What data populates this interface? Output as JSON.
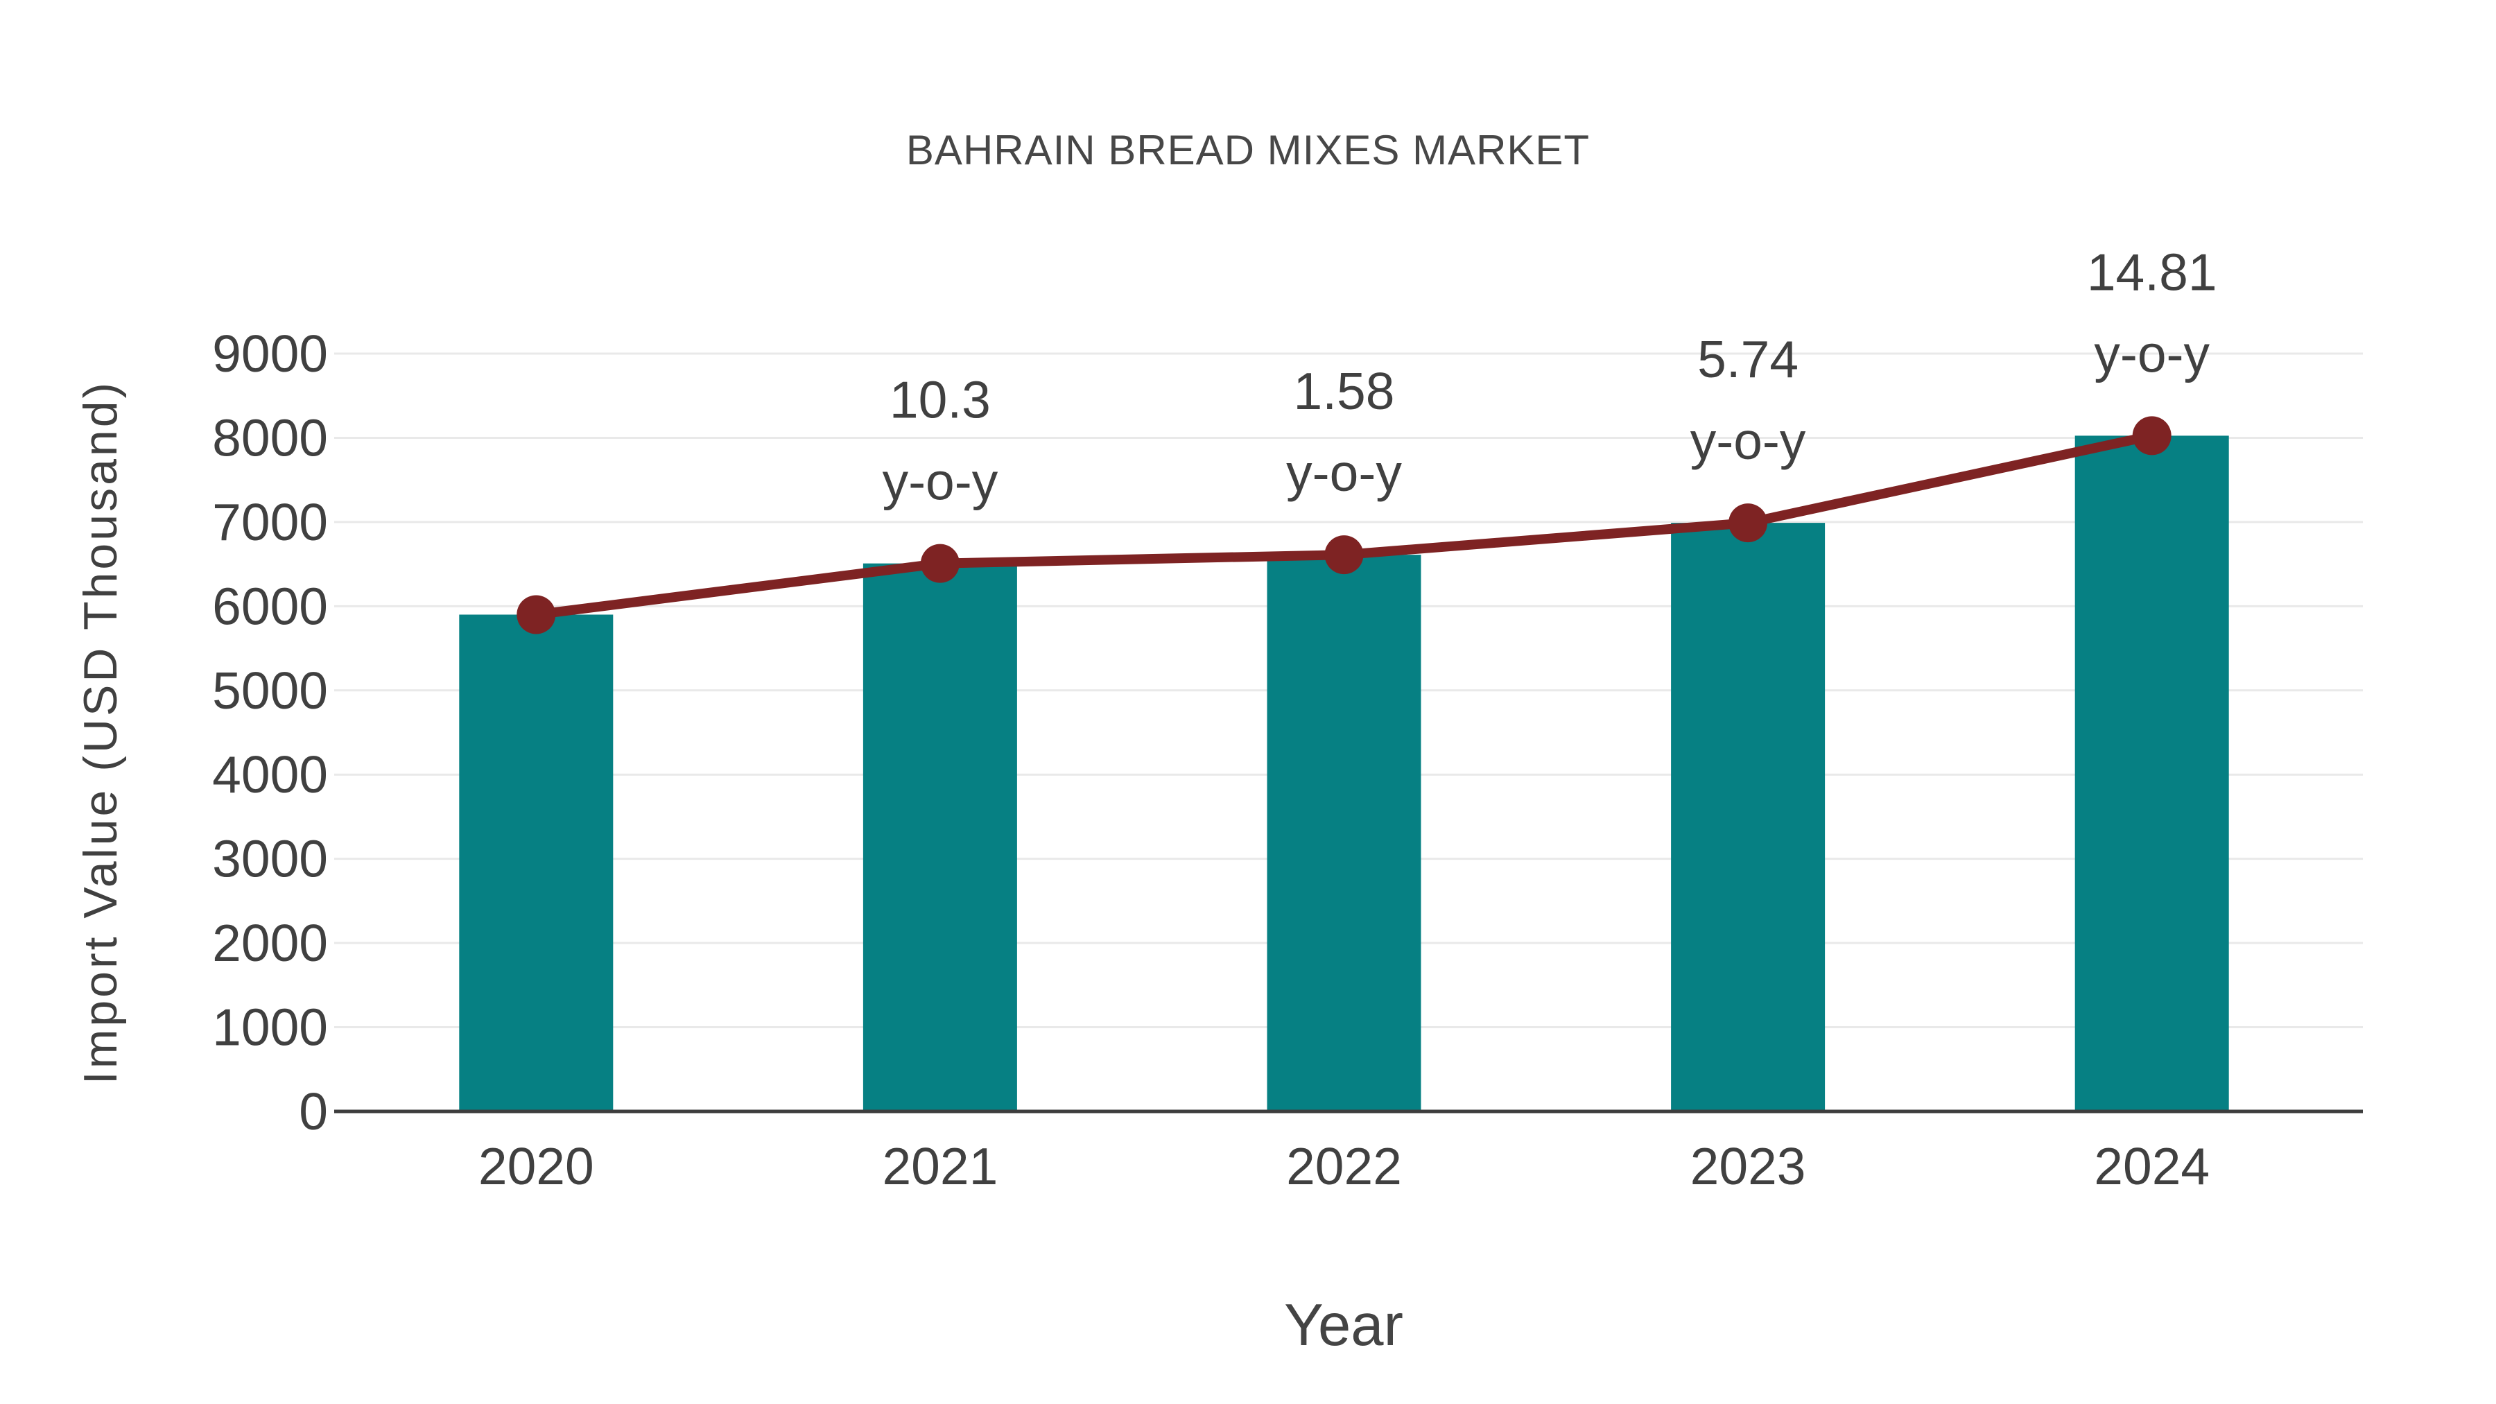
{
  "chart_data": {
    "type": "bar",
    "title": "BAHRAIN BREAD MIXES MARKET",
    "xlabel": "Year",
    "ylabel": "Import Value (USD Thousand)",
    "categories": [
      "2020",
      "2021",
      "2022",
      "2023",
      "2024"
    ],
    "series": [
      {
        "name": "Import Value",
        "type": "bar",
        "values": [
          5900,
          6508,
          6611,
          6990,
          8025
        ]
      },
      {
        "name": "Import Value trend",
        "type": "line",
        "values": [
          5900,
          6508,
          6611,
          6990,
          8025
        ]
      }
    ],
    "annotations": [
      {
        "category": "2021",
        "value_label": "10.3",
        "unit_label": "y-o-y"
      },
      {
        "category": "2022",
        "value_label": "1.58",
        "unit_label": "y-o-y"
      },
      {
        "category": "2023",
        "value_label": "5.74",
        "unit_label": "y-o-y"
      },
      {
        "category": "2024",
        "value_label": "14.81",
        "unit_label": "y-o-y"
      }
    ],
    "ylim": [
      0,
      9000
    ],
    "ytick_step": 1000,
    "yticks": [
      0,
      1000,
      2000,
      3000,
      4000,
      5000,
      6000,
      7000,
      8000,
      9000
    ],
    "grid": true,
    "legend": "none",
    "colors": {
      "bar": "#068083",
      "line": "#7e2323",
      "marker": "#7e2323",
      "tick_text": "#404040",
      "title_text": "#474747",
      "grid": "#e9e9e9",
      "axis": "#3d3d3d",
      "background": "#ffffff"
    }
  }
}
